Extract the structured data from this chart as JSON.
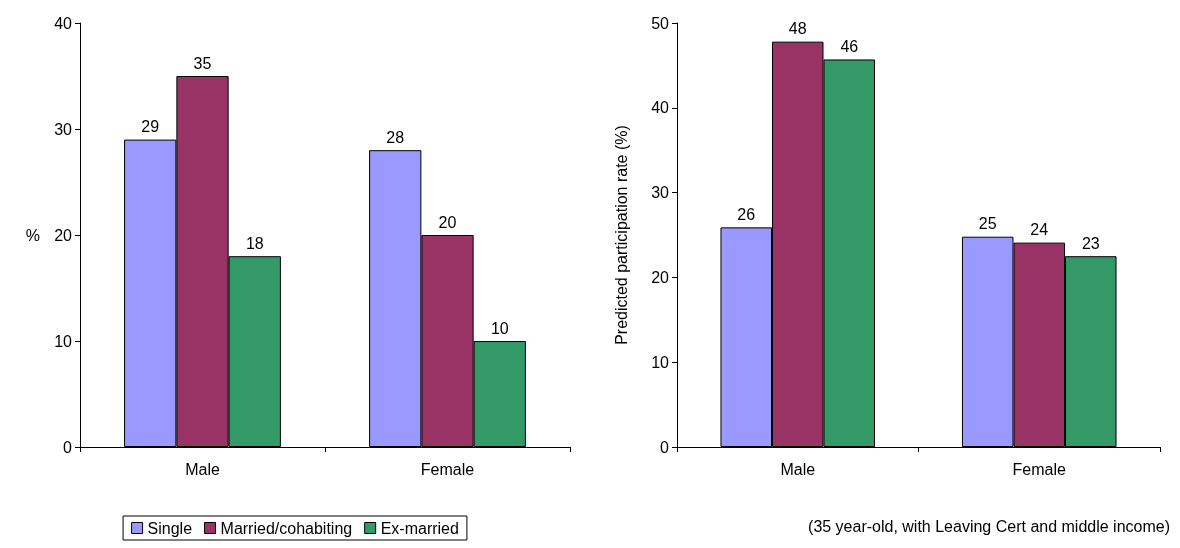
{
  "chart_data": [
    {
      "type": "bar",
      "ylabel": "%",
      "categories": [
        "Male",
        "Female"
      ],
      "ylim": [
        0,
        40
      ],
      "yticks": [
        0,
        10,
        20,
        30,
        40
      ],
      "grid": false,
      "legend": "bottom",
      "data_labels": true,
      "series": [
        {
          "name": "Single",
          "color": "#9999ff",
          "values": [
            29,
            28
          ]
        },
        {
          "name": "Married/cohabiting",
          "color": "#993366",
          "values": [
            35,
            20
          ]
        },
        {
          "name": "Ex-married",
          "color": "#339966",
          "values": [
            18,
            10
          ]
        }
      ]
    },
    {
      "type": "bar",
      "ylabel": "Predicted participation rate (%)",
      "categories": [
        "Male",
        "Female"
      ],
      "ylim": [
        0,
        50
      ],
      "yticks": [
        0,
        10,
        20,
        30,
        40,
        50
      ],
      "grid": false,
      "annotations": [
        "(35 year-old, with Leaving Cert and middle income)"
      ],
      "series": [
        {
          "color": "#9999ff",
          "values": [
            25.9,
            24.8
          ],
          "value_labels": [
            "26",
            "25"
          ]
        },
        {
          "color": "#993366",
          "values": [
            47.8,
            24.1
          ],
          "value_labels": [
            "48",
            "24"
          ]
        },
        {
          "color": "#339966",
          "values": [
            45.7,
            22.5
          ],
          "value_labels": [
            "46",
            "23"
          ]
        }
      ]
    }
  ]
}
